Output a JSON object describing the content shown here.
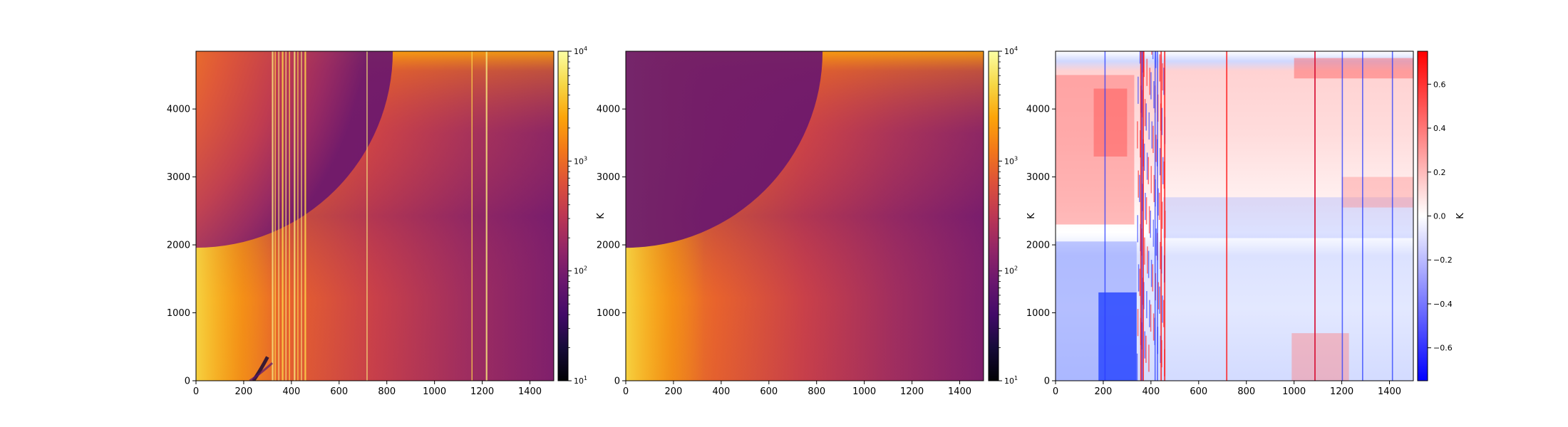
{
  "chart_data": [
    {
      "type": "heatmap",
      "title": "",
      "xlabel": "",
      "ylabel": "",
      "xlim": [
        0,
        1500
      ],
      "ylim": [
        0,
        4850
      ],
      "x_ticks": [
        "0",
        "200",
        "400",
        "600",
        "800",
        "1000",
        "1200",
        "1400"
      ],
      "y_ticks": [
        "0",
        "1000",
        "2000",
        "3000",
        "4000"
      ],
      "colormap": "inferno",
      "colorbar": {
        "label": "K",
        "scale": "log",
        "range": [
          10,
          10000
        ],
        "ticks": [
          {
            "value": 10,
            "base": "10",
            "exp": "1"
          },
          {
            "value": 100,
            "base": "10",
            "exp": "2"
          },
          {
            "value": 1000,
            "base": "10",
            "exp": "3"
          },
          {
            "value": 10000,
            "base": "10",
            "exp": "4"
          }
        ]
      },
      "features": {
        "bright_stripes_x": [
          318,
          330,
          345,
          360,
          375,
          390,
          410,
          425,
          440,
          455,
          715,
          1155,
          1215
        ],
        "dark_streak_x": [
          240,
          300
        ],
        "dark_streak_y": [
          0,
          350
        ]
      }
    },
    {
      "type": "heatmap",
      "title": "",
      "xlabel": "",
      "ylabel": "",
      "xlim": [
        0,
        1500
      ],
      "ylim": [
        0,
        4850
      ],
      "x_ticks": [
        "0",
        "200",
        "400",
        "600",
        "800",
        "1000",
        "1200",
        "1400"
      ],
      "y_ticks": [
        "0",
        "1000",
        "2000",
        "3000",
        "4000"
      ],
      "colormap": "inferno",
      "colorbar": {
        "label": "K",
        "scale": "log",
        "range": [
          10,
          10000
        ],
        "ticks": [
          {
            "value": 10,
            "base": "10",
            "exp": "1"
          },
          {
            "value": 100,
            "base": "10",
            "exp": "2"
          },
          {
            "value": 1000,
            "base": "10",
            "exp": "3"
          },
          {
            "value": 10000,
            "base": "10",
            "exp": "4"
          }
        ]
      }
    },
    {
      "type": "heatmap",
      "title": "",
      "xlabel": "",
      "ylabel": "",
      "xlim": [
        0,
        1500
      ],
      "ylim": [
        0,
        4850
      ],
      "x_ticks": [
        "0",
        "200",
        "400",
        "600",
        "800",
        "1000",
        "1200",
        "1400"
      ],
      "y_ticks": [
        "0",
        "1000",
        "2000",
        "3000",
        "4000"
      ],
      "colormap": "bwr",
      "colorbar": {
        "label": "K",
        "scale": "linear",
        "range": [
          -0.75,
          0.75
        ],
        "ticks": [
          {
            "value": -0.6,
            "label": "−0.6"
          },
          {
            "value": -0.4,
            "label": "−0.4"
          },
          {
            "value": -0.2,
            "label": "−0.2"
          },
          {
            "value": 0.0,
            "label": "0.0"
          },
          {
            "value": 0.2,
            "label": "0.2"
          },
          {
            "value": 0.4,
            "label": "0.4"
          },
          {
            "value": 0.6,
            "label": "0.6"
          }
        ]
      },
      "features": {
        "blue_stripes_x": [
          205,
          360,
          415,
          425,
          1085,
          1200,
          1285,
          1410
        ],
        "red_stripes_x": [
          355,
          365,
          440,
          455,
          715,
          1085
        ]
      }
    }
  ]
}
